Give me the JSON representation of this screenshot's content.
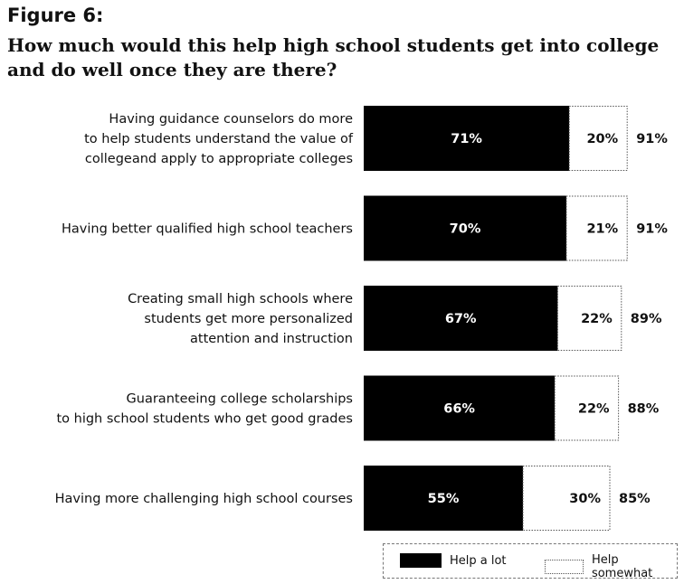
{
  "figure": {
    "label": "Figure 6:",
    "title": "How much would this help high school students get into college and do well once they are there?"
  },
  "colors": {
    "help_a_lot": "#000000",
    "help_somewhat": "#ffffff",
    "outline": "#555555"
  },
  "chart_data": {
    "type": "bar",
    "orientation": "horizontal",
    "stacked": true,
    "title": "How much would this help high school students get into college and do well once they are there?",
    "categories": [
      [
        "Having guidance counselors do more",
        "to help students  understand the value of",
        "collegeand apply to appropriate colleges"
      ],
      [
        "Having better qualified high school teachers"
      ],
      [
        "Creating small high schools where",
        "students get more personalized",
        "attention and instruction"
      ],
      [
        "Guaranteeing college scholarships",
        "to high school students who get good grades"
      ],
      [
        "Having more challenging high school courses"
      ]
    ],
    "series": [
      {
        "name": "Help a lot",
        "values": [
          71,
          70,
          67,
          66,
          55
        ]
      },
      {
        "name": "Help somewhat",
        "values": [
          20,
          21,
          22,
          22,
          30
        ]
      }
    ],
    "segment_labels": {
      "help_a_lot": [
        "71%",
        "70%",
        "67%",
        "66%",
        "55%"
      ],
      "help_somewhat": [
        "20%",
        "21%",
        "22%",
        "22%",
        "30%"
      ]
    },
    "totals": [
      91,
      91,
      89,
      88,
      85
    ],
    "total_labels": [
      "91%",
      "91%",
      "89%",
      "88%",
      "85%"
    ],
    "xlim": [
      0,
      100
    ],
    "grid": false,
    "axes_visible": false,
    "legend_position": "bottom-right"
  },
  "legend": {
    "help_a_lot": "Help a lot",
    "help_somewhat": "Help somewhat"
  }
}
